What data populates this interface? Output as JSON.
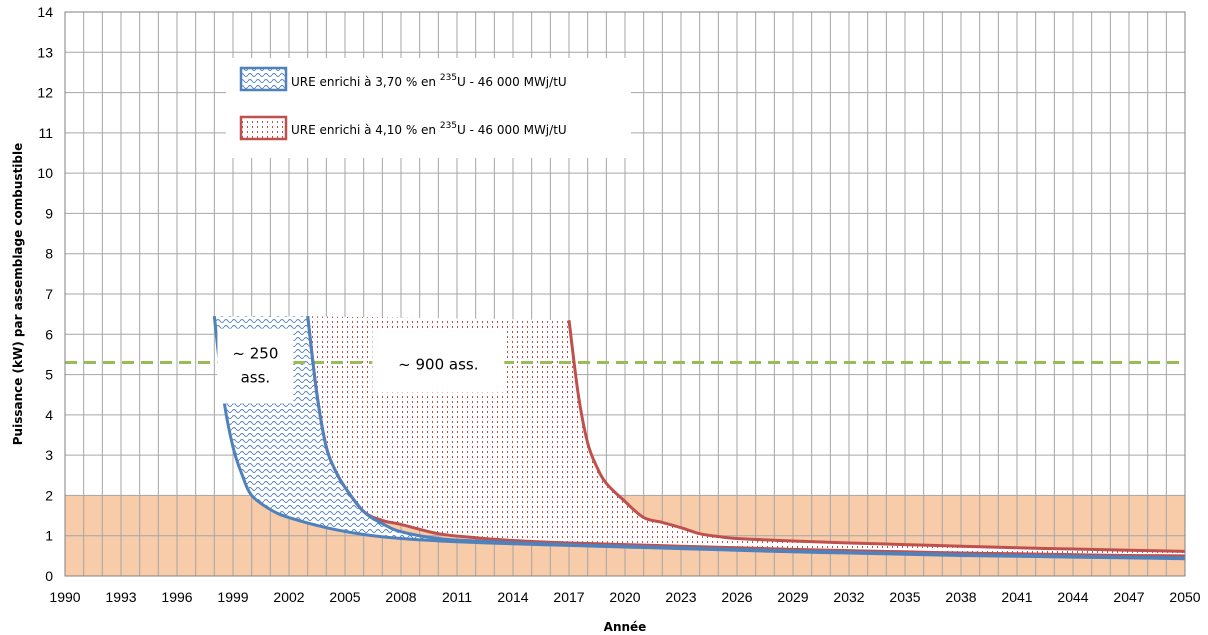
{
  "chart_data": {
    "type": "area",
    "xlabel": "Année",
    "ylabel": "Puissance (kW) par assemblage combustible",
    "xlim": [
      1990,
      2050
    ],
    "ylim": [
      0,
      14
    ],
    "x_ticks": [
      "1990",
      "1993",
      "1996",
      "1999",
      "2002",
      "2005",
      "2008",
      "2011",
      "2014",
      "2017",
      "2020",
      "2023",
      "2026",
      "2029",
      "2032",
      "2035",
      "2038",
      "2041",
      "2044",
      "2047",
      "2050"
    ],
    "y_ticks": [
      "0",
      "1",
      "2",
      "3",
      "4",
      "5",
      "6",
      "7",
      "8",
      "9",
      "10",
      "11",
      "12",
      "13",
      "14"
    ],
    "grid": true,
    "legend_position": "top-left",
    "threshold_line": {
      "y": 5.3,
      "style": "dashed",
      "color": "#9bbb59"
    },
    "low_power_band": {
      "y_from": 0,
      "y_to": 2,
      "color": "#f8cba9"
    },
    "series": [
      {
        "name": "URE enrichi à 3,70 % en 235U - 46 000 MWj/tU",
        "legend_prefix": "URE enrichi à 3,70 % en ",
        "legend_sup": "235",
        "legend_suffix": "U  - 46 000 MWj/tU",
        "color": "#4f81bd",
        "pattern": "waves",
        "left_curve": [
          [
            1998.0,
            6.45
          ],
          [
            1998.5,
            4.4
          ],
          [
            1999.0,
            3.2
          ],
          [
            1999.5,
            2.5
          ],
          [
            2000.0,
            2.0
          ],
          [
            2001.0,
            1.65
          ],
          [
            2002.0,
            1.45
          ],
          [
            2004.0,
            1.2
          ],
          [
            2006.0,
            1.03
          ],
          [
            2008.0,
            0.93
          ],
          [
            2011.0,
            0.85
          ],
          [
            2014.0,
            0.8
          ],
          [
            2017.0,
            0.76
          ],
          [
            2020.0,
            0.72
          ],
          [
            2023.0,
            0.68
          ],
          [
            2026.0,
            0.64
          ],
          [
            2029.0,
            0.6
          ],
          [
            2032.0,
            0.57
          ],
          [
            2035.0,
            0.54
          ],
          [
            2038.0,
            0.51
          ],
          [
            2041.0,
            0.49
          ],
          [
            2044.0,
            0.47
          ],
          [
            2047.0,
            0.45
          ],
          [
            2050.0,
            0.43
          ]
        ],
        "right_curve": [
          [
            2003.0,
            6.45
          ],
          [
            2003.5,
            4.5
          ],
          [
            2004.0,
            3.2
          ],
          [
            2004.5,
            2.6
          ],
          [
            2005.0,
            2.2
          ],
          [
            2006.0,
            1.6
          ],
          [
            2007.0,
            1.3
          ],
          [
            2008.0,
            1.1
          ],
          [
            2010.0,
            0.93
          ],
          [
            2012.0,
            0.87
          ],
          [
            2014.0,
            0.83
          ],
          [
            2017.0,
            0.78
          ],
          [
            2020.0,
            0.74
          ],
          [
            2023.0,
            0.7
          ],
          [
            2026.0,
            0.66
          ],
          [
            2029.0,
            0.62
          ],
          [
            2032.0,
            0.59
          ],
          [
            2035.0,
            0.56
          ],
          [
            2038.0,
            0.53
          ],
          [
            2041.0,
            0.51
          ],
          [
            2044.0,
            0.49
          ],
          [
            2047.0,
            0.47
          ],
          [
            2050.0,
            0.45
          ]
        ]
      },
      {
        "name": "URE enrichi à 4,10 % en 235U - 46 000 MWj/tU",
        "legend_prefix": "URE enrichi à 4,10 % en ",
        "legend_sup": "235",
        "legend_suffix": "U  - 46 000 MWj/tU",
        "color": "#c0504d",
        "pattern": "dots",
        "left_curve": [
          [
            2003.0,
            6.45
          ],
          [
            2003.5,
            4.5
          ],
          [
            2004.0,
            3.2
          ],
          [
            2004.5,
            2.6
          ],
          [
            2005.0,
            2.2
          ],
          [
            2006.0,
            1.6
          ],
          [
            2007.0,
            1.38
          ],
          [
            2008.0,
            1.28
          ],
          [
            2010.0,
            1.05
          ],
          [
            2012.0,
            0.95
          ],
          [
            2014.0,
            0.88
          ],
          [
            2017.0,
            0.82
          ],
          [
            2020.0,
            0.78
          ],
          [
            2023.0,
            0.74
          ],
          [
            2026.0,
            0.7
          ],
          [
            2029.0,
            0.66
          ],
          [
            2032.0,
            0.63
          ],
          [
            2035.0,
            0.6
          ],
          [
            2038.0,
            0.57
          ],
          [
            2041.0,
            0.55
          ],
          [
            2044.0,
            0.53
          ],
          [
            2047.0,
            0.51
          ],
          [
            2050.0,
            0.5
          ]
        ],
        "right_curve": [
          [
            2017.0,
            6.35
          ],
          [
            2017.5,
            4.5
          ],
          [
            2018.0,
            3.3
          ],
          [
            2018.5,
            2.7
          ],
          [
            2019.0,
            2.3
          ],
          [
            2020.0,
            1.85
          ],
          [
            2021.0,
            1.45
          ],
          [
            2022.0,
            1.33
          ],
          [
            2023.0,
            1.2
          ],
          [
            2024.0,
            1.05
          ],
          [
            2025.0,
            0.98
          ],
          [
            2026.0,
            0.93
          ],
          [
            2029.0,
            0.87
          ],
          [
            2032.0,
            0.82
          ],
          [
            2035.0,
            0.78
          ],
          [
            2038.0,
            0.74
          ],
          [
            2041.0,
            0.7
          ],
          [
            2044.0,
            0.67
          ],
          [
            2047.0,
            0.64
          ],
          [
            2050.0,
            0.61
          ]
        ]
      }
    ],
    "annotations": [
      {
        "line1": "~ 250",
        "line2": "ass.",
        "x": 2000.2,
        "y": 5.0
      },
      {
        "line1": "~ 900 ass.",
        "x": 2010.0,
        "y": 5.1
      }
    ]
  }
}
